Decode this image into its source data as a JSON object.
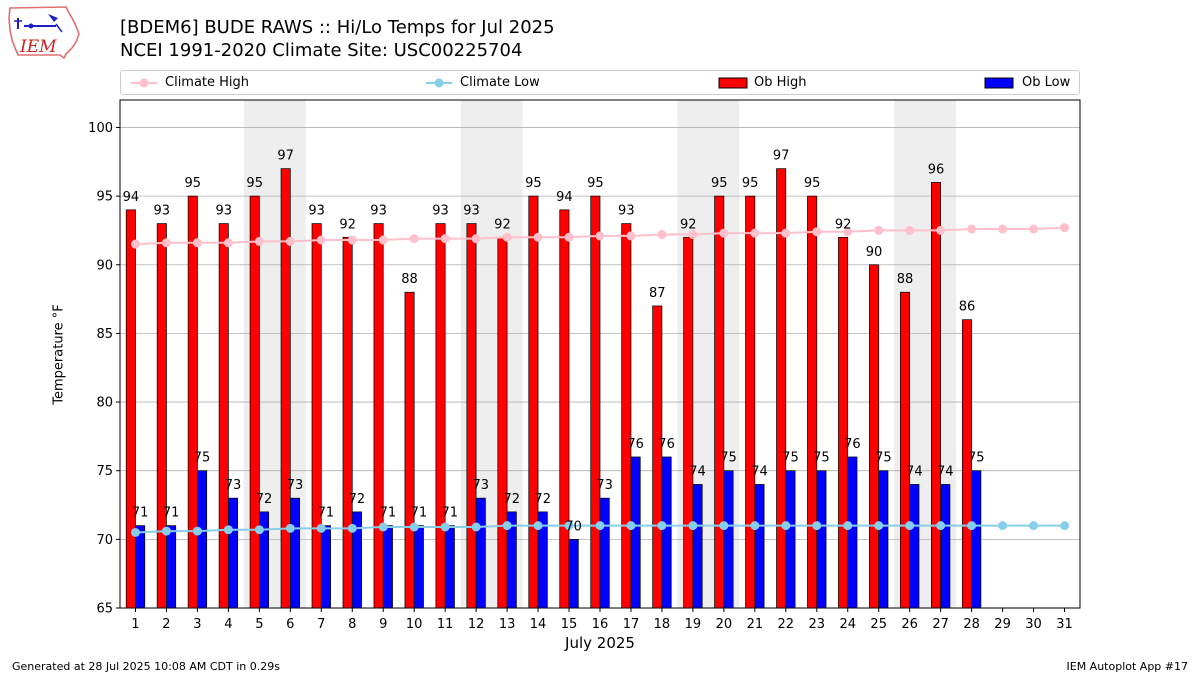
{
  "header": {
    "logo_text": "IEM",
    "title_line1": "[BDEM6] BUDE RAWS :: Hi/Lo Temps for Jul 2025",
    "title_line2": "NCEI 1991-2020 Climate Site: USC00225704"
  },
  "footer": {
    "left": "Generated at 28 Jul 2025 10:08 AM CDT in 0.29s",
    "right": "IEM Autoplot App #17"
  },
  "legend": {
    "climate_high": "Climate High",
    "climate_low": "Climate Low",
    "ob_high": "Ob High",
    "ob_low": "Ob Low"
  },
  "colors": {
    "ob_high": "#ff0000",
    "ob_low": "#0000ff",
    "climate_high": "#ffc0cb",
    "climate_low": "#87ceeb",
    "weekend_band": "#eeeeee",
    "grid": "#b0b0b0"
  },
  "chart_data": {
    "type": "bar",
    "title": "[BDEM6] BUDE RAWS :: Hi/Lo Temps for Jul 2025",
    "xlabel": "July 2025",
    "ylabel": "Temperature °F",
    "ylim": [
      65,
      102
    ],
    "yticks": [
      65,
      70,
      75,
      80,
      85,
      90,
      95,
      100
    ],
    "grid": "horizontal",
    "legend_position": "top",
    "categories": [
      1,
      2,
      3,
      4,
      5,
      6,
      7,
      8,
      9,
      10,
      11,
      12,
      13,
      14,
      15,
      16,
      17,
      18,
      19,
      20,
      21,
      22,
      23,
      24,
      25,
      26,
      27,
      28,
      29,
      30,
      31
    ],
    "shaded_days": [
      [
        5,
        6
      ],
      [
        12,
        13
      ],
      [
        19,
        20
      ],
      [
        26,
        27
      ]
    ],
    "series": [
      {
        "name": "Ob High",
        "kind": "bar",
        "values": [
          94,
          93,
          95,
          93,
          95,
          97,
          93,
          92,
          93,
          88,
          93,
          93,
          92,
          95,
          94,
          95,
          93,
          87,
          92,
          95,
          95,
          97,
          95,
          92,
          90,
          88,
          96,
          86,
          null,
          null,
          null
        ]
      },
      {
        "name": "Ob Low",
        "kind": "bar",
        "values": [
          71,
          71,
          75,
          73,
          72,
          73,
          71,
          72,
          71,
          71,
          71,
          73,
          72,
          72,
          70,
          73,
          76,
          76,
          74,
          75,
          74,
          75,
          75,
          76,
          75,
          74,
          74,
          75,
          null,
          null,
          null
        ]
      },
      {
        "name": "Climate High",
        "kind": "line",
        "values": [
          91.5,
          91.6,
          91.6,
          91.6,
          91.7,
          91.7,
          91.8,
          91.8,
          91.8,
          91.9,
          91.9,
          91.9,
          92.0,
          92.0,
          92.0,
          92.1,
          92.1,
          92.2,
          92.2,
          92.3,
          92.3,
          92.3,
          92.4,
          92.4,
          92.5,
          92.5,
          92.5,
          92.6,
          92.6,
          92.6,
          92.7
        ]
      },
      {
        "name": "Climate Low",
        "kind": "line",
        "values": [
          70.5,
          70.6,
          70.6,
          70.7,
          70.7,
          70.8,
          70.8,
          70.8,
          70.9,
          70.9,
          70.9,
          70.9,
          71.0,
          71.0,
          71.0,
          71.0,
          71.0,
          71.0,
          71.0,
          71.0,
          71.0,
          71.0,
          71.0,
          71.0,
          71.0,
          71.0,
          71.0,
          71.0,
          71.0,
          71.0,
          71.0
        ]
      }
    ]
  }
}
